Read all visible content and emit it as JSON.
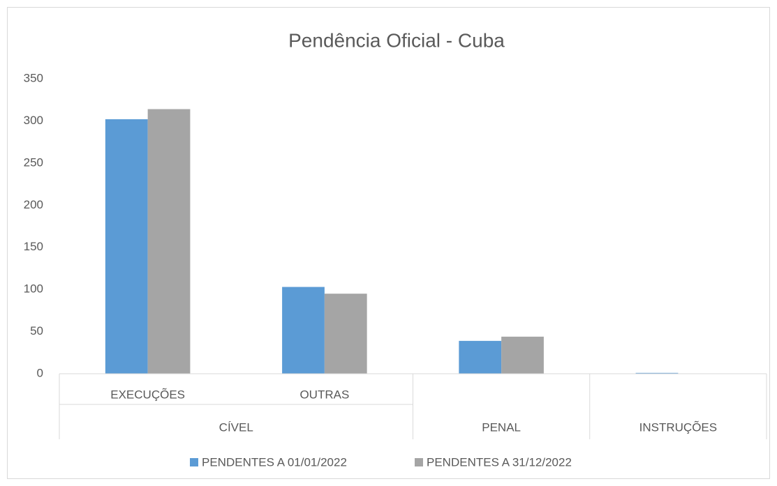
{
  "chart_data": {
    "type": "bar",
    "title": "Pendência Oficial - Cuba",
    "categories": [
      "EXECUÇÕES",
      "OUTRAS",
      null,
      null
    ],
    "group_categories": [
      "CÍVEL",
      "CÍVEL",
      "PENAL",
      "INSTRUÇÕES"
    ],
    "series": [
      {
        "name": "PENDENTES A 01/01/2022",
        "color": "#5b9bd5",
        "values": [
          302,
          103,
          39,
          1
        ]
      },
      {
        "name": "PENDENTES A 31/12/2022",
        "color": "#a5a5a5",
        "values": [
          314,
          95,
          44,
          0
        ]
      }
    ],
    "ylim": [
      0,
      350
    ],
    "yticks": [
      0,
      50,
      100,
      150,
      200,
      250,
      300,
      350
    ],
    "grid": false,
    "legend": "bottom"
  }
}
